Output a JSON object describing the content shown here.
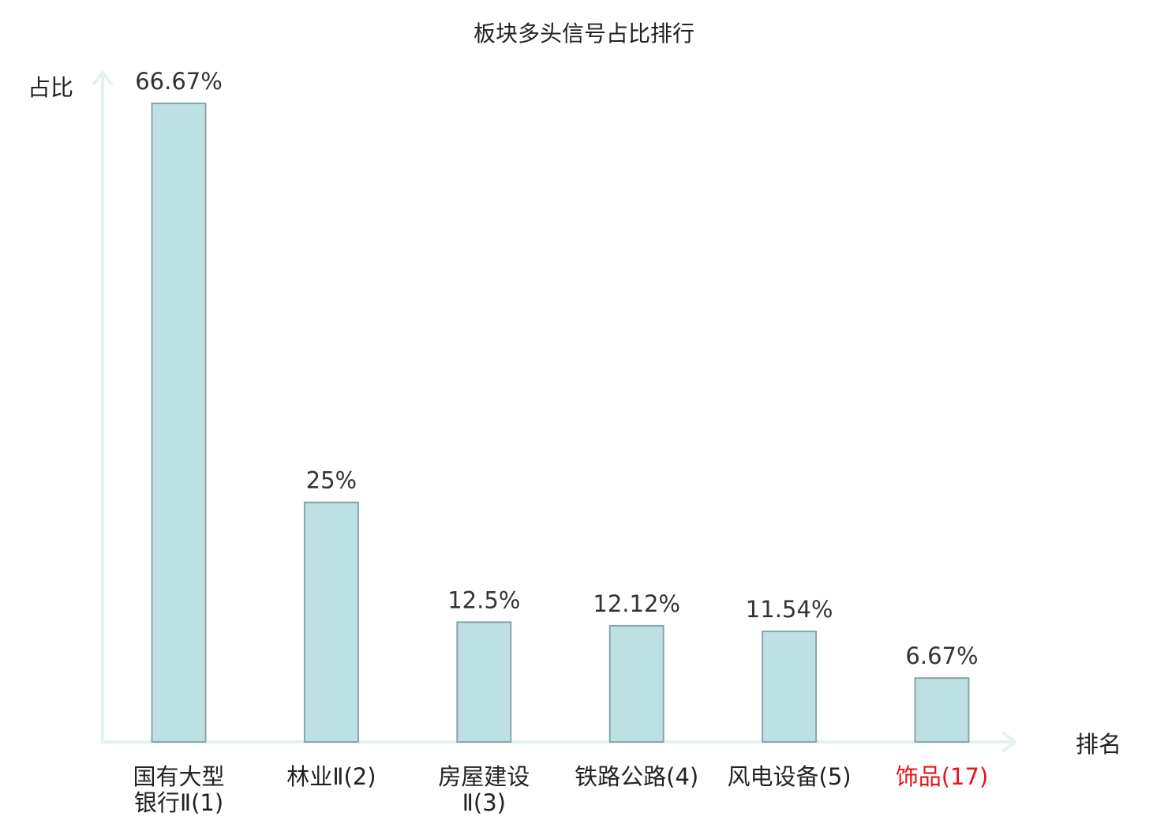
{
  "chart_data": {
    "type": "bar",
    "title": "板块多头信号占比排行",
    "ylabel": "占比",
    "xlabel": "排名",
    "categories": [
      [
        "国有大型",
        "银行Ⅱ(1)"
      ],
      [
        "林业Ⅱ(2)"
      ],
      [
        "房屋建设",
        "Ⅱ(3)"
      ],
      [
        "铁路公路(4)"
      ],
      [
        "风电设备(5)"
      ],
      [
        "饰品(17)"
      ]
    ],
    "values": [
      66.67,
      25,
      12.5,
      12.12,
      11.54,
      6.67
    ],
    "value_labels": [
      "66.67%",
      "25%",
      "12.5%",
      "12.12%",
      "11.54%",
      "6.67%"
    ],
    "highlighted_category_index": 5,
    "ylim": [
      0,
      66.67
    ],
    "grid": false,
    "legend": "none"
  },
  "colors": {
    "bar_fill": "#bde0e3",
    "bar_stroke": "#89a6a8",
    "axis": "#e3f2ef",
    "text": "#333333",
    "title_text": "#222222",
    "highlight": "#e8141b"
  }
}
